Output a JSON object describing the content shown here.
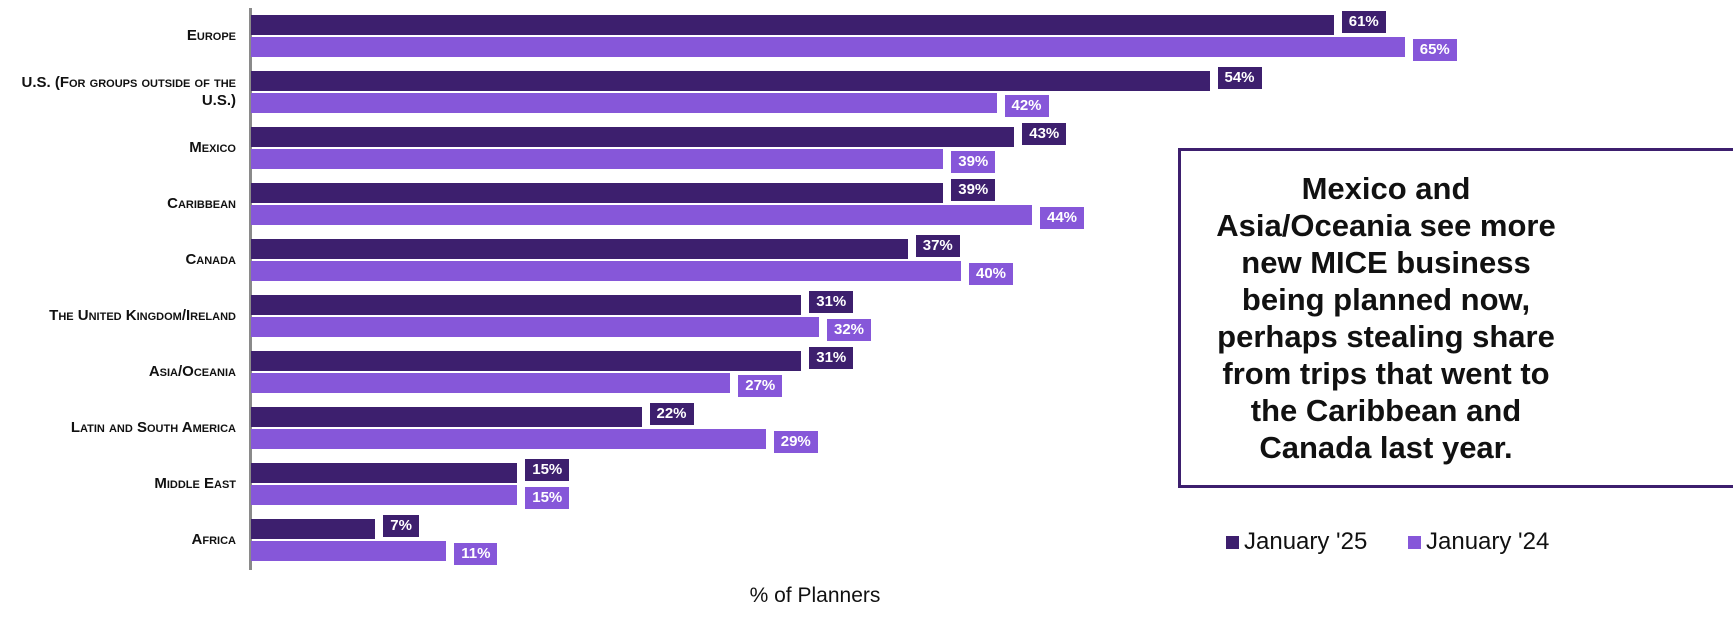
{
  "chart_data": {
    "type": "bar",
    "orientation": "horizontal",
    "categories": [
      "Europe",
      "U.S. (For groups outside of the U.S.)",
      "Mexico",
      "Caribbean",
      "Canada",
      "The United Kingdom/Ireland",
      "Asia/Oceania",
      "Latin and South America",
      "Middle East",
      "Africa"
    ],
    "series": [
      {
        "name": "January '25",
        "color": "#3d1f6e",
        "values": [
          61,
          54,
          43,
          39,
          37,
          31,
          31,
          22,
          15,
          7
        ],
        "value_labels": [
          "61%",
          "54%",
          "43%",
          "39%",
          "37%",
          "31%",
          "31%",
          "22%",
          "15%",
          "7%"
        ]
      },
      {
        "name": "January '24",
        "color": "#8657d9",
        "values": [
          65,
          42,
          39,
          44,
          40,
          32,
          27,
          29,
          15,
          11
        ],
        "value_labels": [
          "65%",
          "42%",
          "39%",
          "44%",
          "40%",
          "32%",
          "27%",
          "29%",
          "15%",
          "11%"
        ]
      }
    ],
    "xlabel": "% of Planners",
    "annotation": [
      "Mexico and",
      "Asia/Oceania see more",
      "new MICE business",
      "being planned now,",
      "perhaps stealing share",
      "from trips that went to",
      "the Caribbean and",
      "Canada  last year."
    ],
    "legend": "bottom-right"
  }
}
